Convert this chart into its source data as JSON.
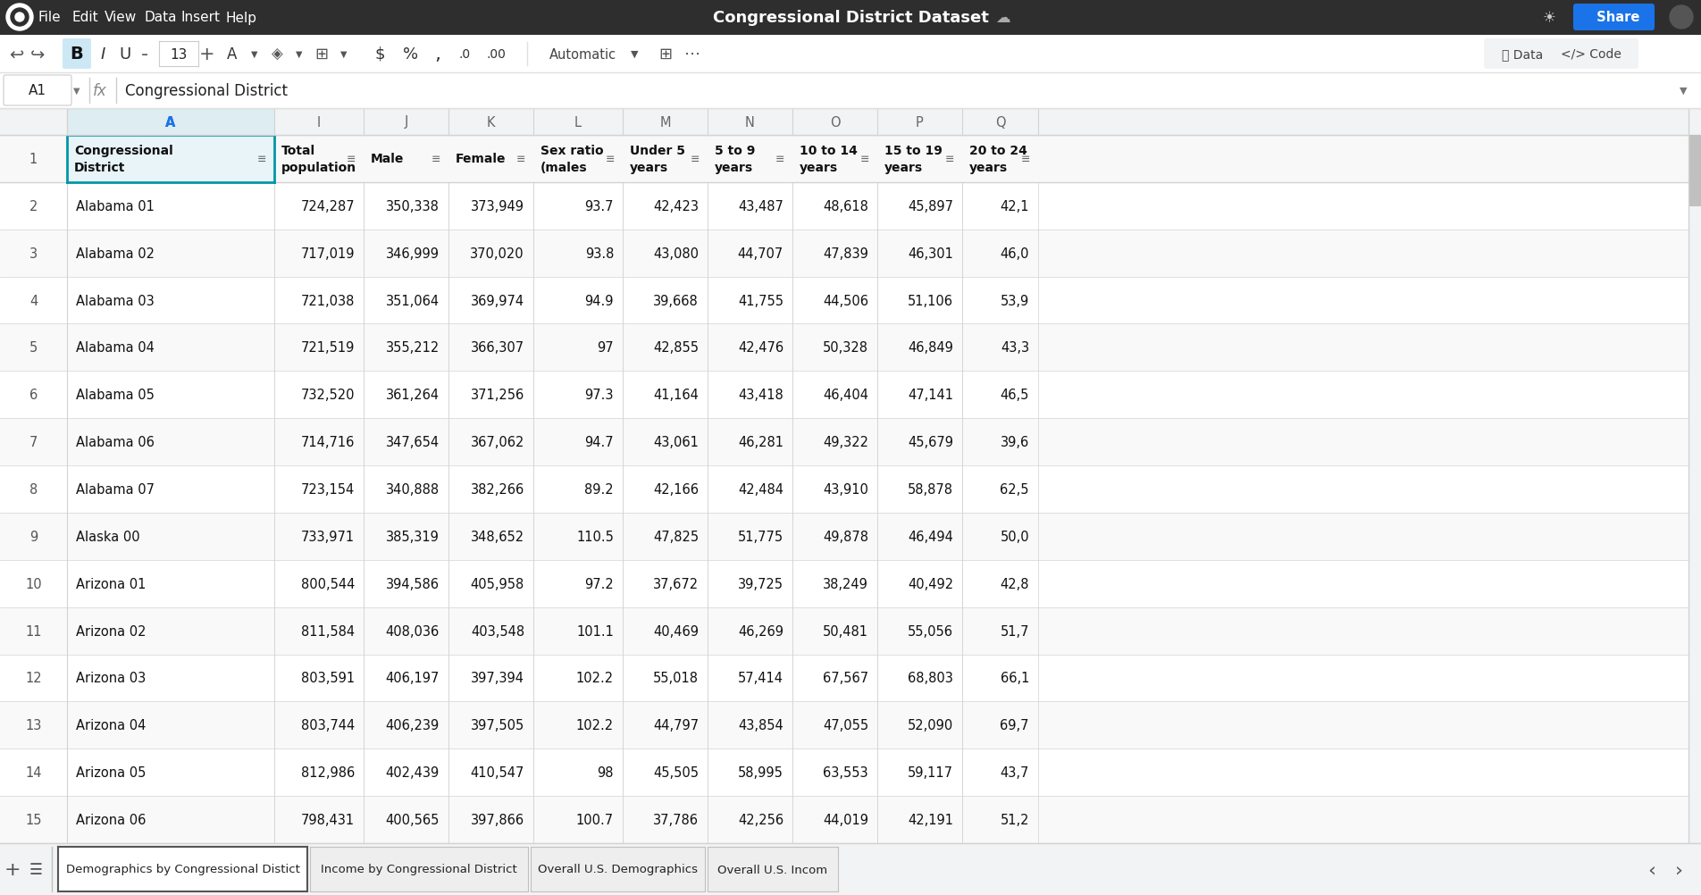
{
  "title": "Congressional District Dataset",
  "formula_bar_text": "Congressional District",
  "cell_ref": "A1",
  "top_bar_bg": "#2d2d2d",
  "menu_items": [
    "File",
    "Edit",
    "View",
    "Data",
    "Insert",
    "Help"
  ],
  "col_header_bg": "#f1f3f4",
  "grid_line_color": "#d3d3d3",
  "selected_cell_bg": "#e8f4f8",
  "selected_cell_border": "#0097a7",
  "col_letters": [
    "A",
    "I",
    "J",
    "K",
    "L",
    "M",
    "N",
    "O",
    "P",
    "Q"
  ],
  "headers": [
    "Congressional\nDistrict",
    "Total\npopulation",
    "Male",
    "Female",
    "Sex ratio\n(males",
    "Under 5\nyears",
    "5 to 9\nyears",
    "10 to 14\nyears",
    "15 to 19\nyears",
    "20 to 24\nyears"
  ],
  "rows": [
    {
      "num": 2,
      "district": "Alabama 01",
      "total": "724,287",
      "male": "350,338",
      "female": "373,949",
      "sex_ratio": "93.7",
      "u5": "42,423",
      "5to9": "43,487",
      "10to14": "48,618",
      "15to19": "45,897",
      "20to24": "42,1"
    },
    {
      "num": 3,
      "district": "Alabama 02",
      "total": "717,019",
      "male": "346,999",
      "female": "370,020",
      "sex_ratio": "93.8",
      "u5": "43,080",
      "5to9": "44,707",
      "10to14": "47,839",
      "15to19": "46,301",
      "20to24": "46,0"
    },
    {
      "num": 4,
      "district": "Alabama 03",
      "total": "721,038",
      "male": "351,064",
      "female": "369,974",
      "sex_ratio": "94.9",
      "u5": "39,668",
      "5to9": "41,755",
      "10to14": "44,506",
      "15to19": "51,106",
      "20to24": "53,9"
    },
    {
      "num": 5,
      "district": "Alabama 04",
      "total": "721,519",
      "male": "355,212",
      "female": "366,307",
      "sex_ratio": "97",
      "u5": "42,855",
      "5to9": "42,476",
      "10to14": "50,328",
      "15to19": "46,849",
      "20to24": "43,3"
    },
    {
      "num": 6,
      "district": "Alabama 05",
      "total": "732,520",
      "male": "361,264",
      "female": "371,256",
      "sex_ratio": "97.3",
      "u5": "41,164",
      "5to9": "43,418",
      "10to14": "46,404",
      "15to19": "47,141",
      "20to24": "46,5"
    },
    {
      "num": 7,
      "district": "Alabama 06",
      "total": "714,716",
      "male": "347,654",
      "female": "367,062",
      "sex_ratio": "94.7",
      "u5": "43,061",
      "5to9": "46,281",
      "10to14": "49,322",
      "15to19": "45,679",
      "20to24": "39,6"
    },
    {
      "num": 8,
      "district": "Alabama 07",
      "total": "723,154",
      "male": "340,888",
      "female": "382,266",
      "sex_ratio": "89.2",
      "u5": "42,166",
      "5to9": "42,484",
      "10to14": "43,910",
      "15to19": "58,878",
      "20to24": "62,5"
    },
    {
      "num": 9,
      "district": "Alaska 00",
      "total": "733,971",
      "male": "385,319",
      "female": "348,652",
      "sex_ratio": "110.5",
      "u5": "47,825",
      "5to9": "51,775",
      "10to14": "49,878",
      "15to19": "46,494",
      "20to24": "50,0"
    },
    {
      "num": 10,
      "district": "Arizona 01",
      "total": "800,544",
      "male": "394,586",
      "female": "405,958",
      "sex_ratio": "97.2",
      "u5": "37,672",
      "5to9": "39,725",
      "10to14": "38,249",
      "15to19": "40,492",
      "20to24": "42,8"
    },
    {
      "num": 11,
      "district": "Arizona 02",
      "total": "811,584",
      "male": "408,036",
      "female": "403,548",
      "sex_ratio": "101.1",
      "u5": "40,469",
      "5to9": "46,269",
      "10to14": "50,481",
      "15to19": "55,056",
      "20to24": "51,7"
    },
    {
      "num": 12,
      "district": "Arizona 03",
      "total": "803,591",
      "male": "406,197",
      "female": "397,394",
      "sex_ratio": "102.2",
      "u5": "55,018",
      "5to9": "57,414",
      "10to14": "67,567",
      "15to19": "68,803",
      "20to24": "66,1"
    },
    {
      "num": 13,
      "district": "Arizona 04",
      "total": "803,744",
      "male": "406,239",
      "female": "397,505",
      "sex_ratio": "102.2",
      "u5": "44,797",
      "5to9": "43,854",
      "10to14": "47,055",
      "15to19": "52,090",
      "20to24": "69,7"
    },
    {
      "num": 14,
      "district": "Arizona 05",
      "total": "812,986",
      "male": "402,439",
      "female": "410,547",
      "sex_ratio": "98",
      "u5": "45,505",
      "5to9": "58,995",
      "10to14": "63,553",
      "15to19": "59,117",
      "20to24": "43,7"
    },
    {
      "num": 15,
      "district": "Arizona 06",
      "total": "798,431",
      "male": "400,565",
      "female": "397,866",
      "sex_ratio": "100.7",
      "u5": "37,786",
      "5to9": "42,256",
      "10to14": "44,019",
      "15to19": "42,191",
      "20to24": "51,2"
    }
  ],
  "tabs": [
    "Demographics by Congressional Distict",
    "Income by Congressional District",
    "Overall U.S. Demographics",
    "Overall U.S. Incom"
  ],
  "active_tab": 0,
  "fig_w": 19.04,
  "fig_h": 10.03,
  "dpi": 100
}
